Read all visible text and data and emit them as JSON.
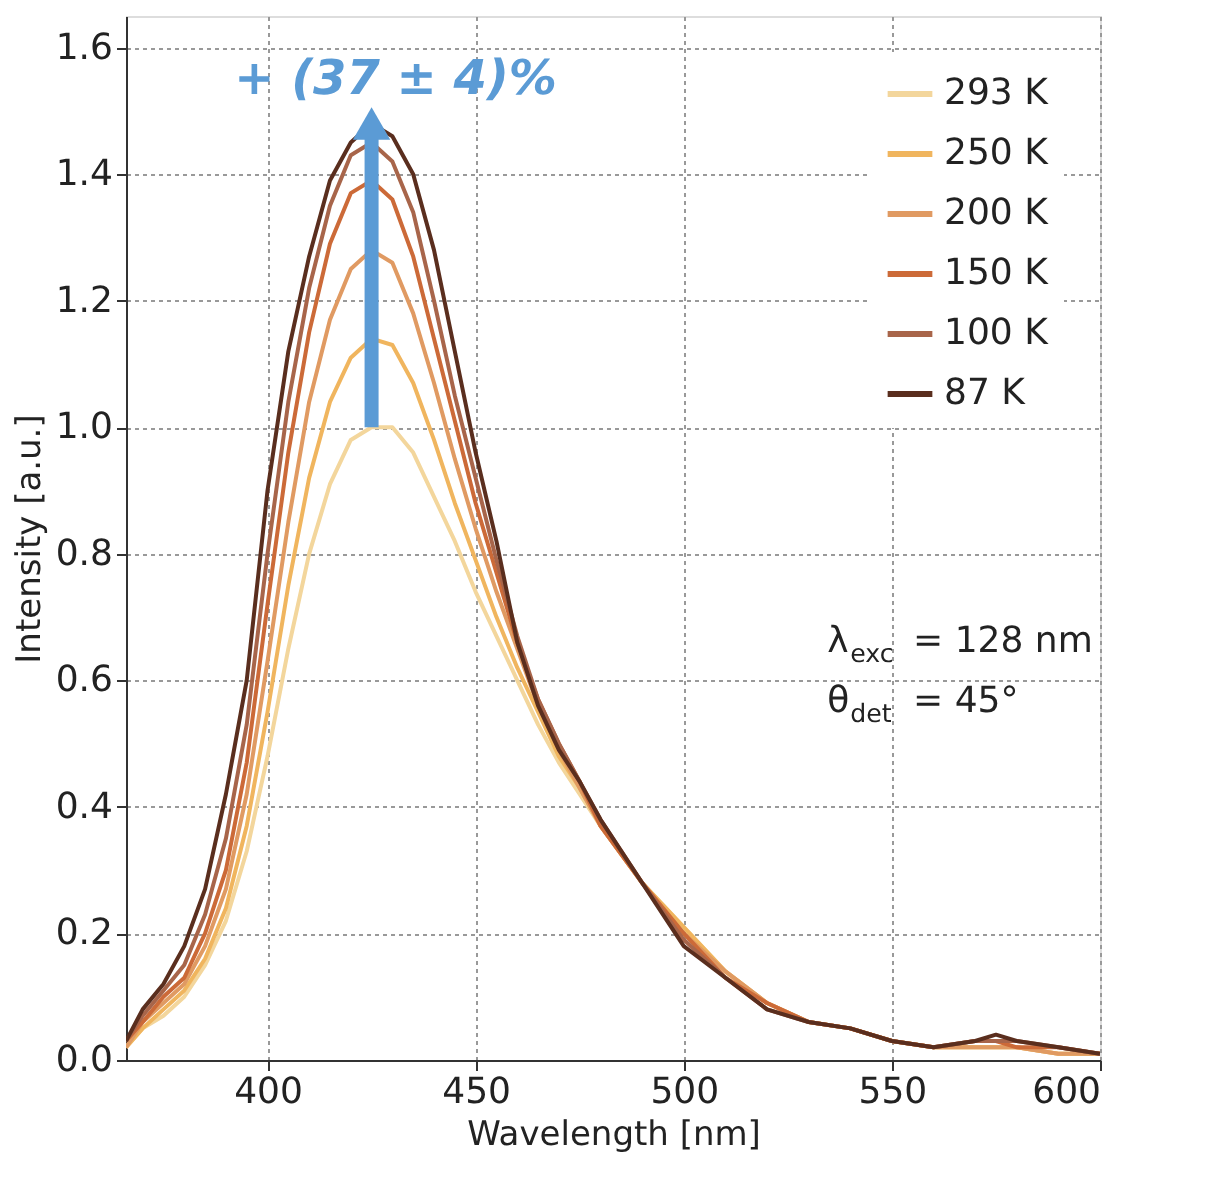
{
  "chart_data": {
    "type": "line",
    "xlabel": "Wavelength [nm]",
    "ylabel": "Intensity [a.u.]",
    "xlim": [
      366,
      600
    ],
    "ylim": [
      0,
      1.65
    ],
    "xticks": [
      400,
      450,
      500,
      550,
      600
    ],
    "yticks": [
      {
        "value": 0,
        "label": "0.0"
      },
      0.2,
      0.4,
      0.6,
      0.8,
      {
        "value": 1,
        "label": "1.0"
      },
      1.2,
      1.4,
      1.6
    ],
    "grid": true,
    "legend": "top right",
    "line_style": "solid",
    "marker": "none",
    "x": [
      366,
      370,
      375,
      380,
      385,
      390,
      395,
      400,
      405,
      410,
      415,
      420,
      425,
      430,
      435,
      440,
      445,
      450,
      455,
      460,
      465,
      470,
      475,
      480,
      490,
      500,
      510,
      520,
      530,
      540,
      550,
      560,
      570,
      575,
      580,
      590,
      600
    ],
    "series": [
      {
        "name": "293 K",
        "color": "#f3d69c",
        "values": [
          0.02,
          0.05,
          0.07,
          0.1,
          0.15,
          0.22,
          0.33,
          0.48,
          0.65,
          0.8,
          0.91,
          0.98,
          1.0,
          1.0,
          0.96,
          0.89,
          0.82,
          0.74,
          0.67,
          0.6,
          0.53,
          0.47,
          0.42,
          0.37,
          0.28,
          0.21,
          0.14,
          0.09,
          0.06,
          0.05,
          0.03,
          0.02,
          0.02,
          0.02,
          0.02,
          0.01,
          0.01
        ]
      },
      {
        "name": "250 K",
        "color": "#f0b55e",
        "values": [
          0.02,
          0.05,
          0.08,
          0.11,
          0.16,
          0.24,
          0.37,
          0.55,
          0.75,
          0.92,
          1.04,
          1.11,
          1.14,
          1.13,
          1.07,
          0.98,
          0.88,
          0.79,
          0.7,
          0.62,
          0.55,
          0.48,
          0.43,
          0.37,
          0.28,
          0.21,
          0.14,
          0.09,
          0.06,
          0.05,
          0.03,
          0.02,
          0.02,
          0.02,
          0.02,
          0.01,
          0.01
        ]
      },
      {
        "name": "200 K",
        "color": "#e09a62",
        "values": [
          0.02,
          0.06,
          0.09,
          0.12,
          0.18,
          0.27,
          0.42,
          0.63,
          0.85,
          1.04,
          1.17,
          1.25,
          1.28,
          1.26,
          1.18,
          1.07,
          0.95,
          0.84,
          0.74,
          0.65,
          0.56,
          0.49,
          0.43,
          0.37,
          0.28,
          0.2,
          0.14,
          0.09,
          0.06,
          0.05,
          0.03,
          0.02,
          0.02,
          0.02,
          0.02,
          0.01,
          0.01
        ]
      },
      {
        "name": "150 K",
        "color": "#cc6a38",
        "values": [
          0.03,
          0.06,
          0.1,
          0.13,
          0.2,
          0.3,
          0.47,
          0.72,
          0.96,
          1.15,
          1.29,
          1.37,
          1.39,
          1.36,
          1.27,
          1.14,
          1.01,
          0.88,
          0.77,
          0.66,
          0.57,
          0.5,
          0.44,
          0.37,
          0.28,
          0.2,
          0.13,
          0.09,
          0.06,
          0.05,
          0.03,
          0.02,
          0.03,
          0.03,
          0.02,
          0.02,
          0.01
        ]
      },
      {
        "name": "100 K",
        "color": "#a8654a",
        "values": [
          0.03,
          0.07,
          0.11,
          0.15,
          0.23,
          0.35,
          0.53,
          0.8,
          1.04,
          1.22,
          1.35,
          1.43,
          1.45,
          1.42,
          1.34,
          1.2,
          1.05,
          0.92,
          0.79,
          0.67,
          0.57,
          0.5,
          0.44,
          0.38,
          0.28,
          0.19,
          0.13,
          0.08,
          0.06,
          0.05,
          0.03,
          0.02,
          0.03,
          0.03,
          0.03,
          0.02,
          0.01
        ]
      },
      {
        "name": "87 K",
        "color": "#5a2e1e",
        "values": [
          0.03,
          0.08,
          0.12,
          0.18,
          0.27,
          0.42,
          0.6,
          0.9,
          1.12,
          1.27,
          1.39,
          1.45,
          1.48,
          1.46,
          1.4,
          1.28,
          1.12,
          0.96,
          0.82,
          0.66,
          0.56,
          0.49,
          0.44,
          0.38,
          0.28,
          0.18,
          0.13,
          0.08,
          0.06,
          0.05,
          0.03,
          0.02,
          0.03,
          0.04,
          0.03,
          0.02,
          0.01
        ]
      }
    ],
    "annotations": [
      {
        "text": "+ (37 ± 4)%",
        "x": 425,
        "y": 1.48
      },
      "λ$_{exc}$ = 128 nm",
      "θ$_{det}$ = 45°"
    ]
  }
}
